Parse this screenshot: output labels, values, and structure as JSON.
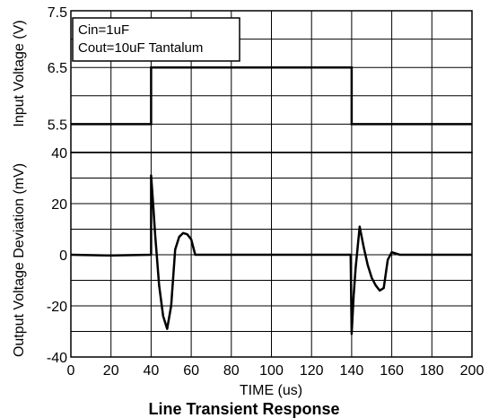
{
  "chart_data": {
    "title": "Line Transient Response",
    "xlabel": "TIME (us)",
    "x_ticks": [
      "0",
      "20",
      "40",
      "60",
      "80",
      "100",
      "120",
      "140",
      "160",
      "180",
      "200"
    ],
    "xlim": [
      0,
      200
    ],
    "legend_lines": [
      "Cin=1uF",
      "Cout=10uF Tantalum"
    ],
    "colors": {
      "line": "#000000",
      "grid": "#000000",
      "background": "#ffffff"
    },
    "panels": [
      {
        "type": "line",
        "ylabel": "Input Voltage (V)",
        "ylim": [
          5,
          7.5
        ],
        "y_ticks": [
          "5.5",
          "6.5",
          "7.5"
        ],
        "grid": true,
        "series": [
          {
            "x": [
              0,
              40,
              40,
              140,
              140,
              200
            ],
            "y": [
              5.5,
              5.5,
              6.5,
              6.5,
              5.5,
              5.5
            ]
          }
        ]
      },
      {
        "type": "line",
        "ylabel": "Output Voltage Deviation (mV)",
        "ylim": [
          -40,
          40
        ],
        "y_ticks": [
          "40",
          "20",
          "0",
          "-20",
          "-40"
        ],
        "grid": true,
        "series": [
          {
            "x": [
              0,
              20,
              40,
              40,
              41,
              42,
              44,
              46,
              48,
              50,
              52,
              54,
              56,
              58,
              60,
              62,
              64,
              66,
              67,
              70,
              100,
              139.5,
              140,
              141,
              142,
              144,
              146,
              148,
              150,
              152,
              154,
              156,
              158,
              160,
              162,
              164,
              166,
              168,
              200
            ],
            "y": [
              0,
              -0.3,
              0,
              31,
              20,
              8,
              -12,
              -24,
              -29,
              -20,
              2,
              7,
              8.5,
              8,
              6,
              0,
              0,
              0,
              0,
              0,
              0,
              0,
              -31,
              -16,
              -5,
              11,
              3,
              -4,
              -9,
              -12,
              -14,
              -13,
              -2,
              1,
              0.5,
              0,
              0,
              0,
              0
            ]
          }
        ]
      }
    ]
  }
}
